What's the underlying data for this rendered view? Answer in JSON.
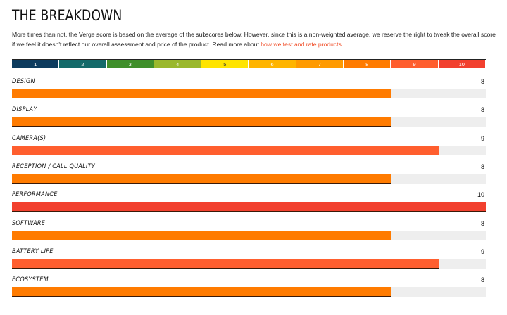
{
  "header": {
    "title": "THE BREAKDOWN",
    "intro_line1": "More times than not, the Verge score is based on the average of the subscores below. However, since this is a non-weighted average, we reserve the right",
    "intro_line2": "to tweak the overall score if we feel it doesn't reflect our overall assessment and price of the product. Read more about ",
    "intro_link": "how we test and rate products",
    "intro_end": "."
  },
  "scale": [
    {
      "label": "1",
      "color": "#0d3b5e",
      "text_color": "#ffffff"
    },
    {
      "label": "2",
      "color": "#136a6a",
      "text_color": "#ffffff"
    },
    {
      "label": "3",
      "color": "#3f8f2a",
      "text_color": "#ffffff"
    },
    {
      "label": "4",
      "color": "#9ab82c",
      "text_color": "#ffffff"
    },
    {
      "label": "5",
      "color": "#ffe400",
      "text_color": "#333333"
    },
    {
      "label": "6",
      "color": "#ffb400",
      "text_color": "#ffffff"
    },
    {
      "label": "7",
      "color": "#ff9a00",
      "text_color": "#ffffff"
    },
    {
      "label": "8",
      "color": "#ff7b00",
      "text_color": "#ffffff"
    },
    {
      "label": "9",
      "color": "#ff5e2e",
      "text_color": "#ffffff"
    },
    {
      "label": "10",
      "color": "#f2402e",
      "text_color": "#ffffff"
    }
  ],
  "chart_data": {
    "type": "bar",
    "orientation": "horizontal",
    "xlim": [
      0,
      10
    ],
    "categories": [
      "DESIGN",
      "DISPLAY",
      "CAMERA(S)",
      "RECEPTION / CALL QUALITY",
      "PERFORMANCE",
      "SOFTWARE",
      "BATTERY LIFE",
      "ECOSYSTEM"
    ],
    "values": [
      8,
      8,
      9,
      8,
      10,
      8,
      9,
      8
    ],
    "score_labels": [
      "8",
      "8",
      "9",
      "8",
      "10",
      "8",
      "9",
      "8"
    ]
  }
}
